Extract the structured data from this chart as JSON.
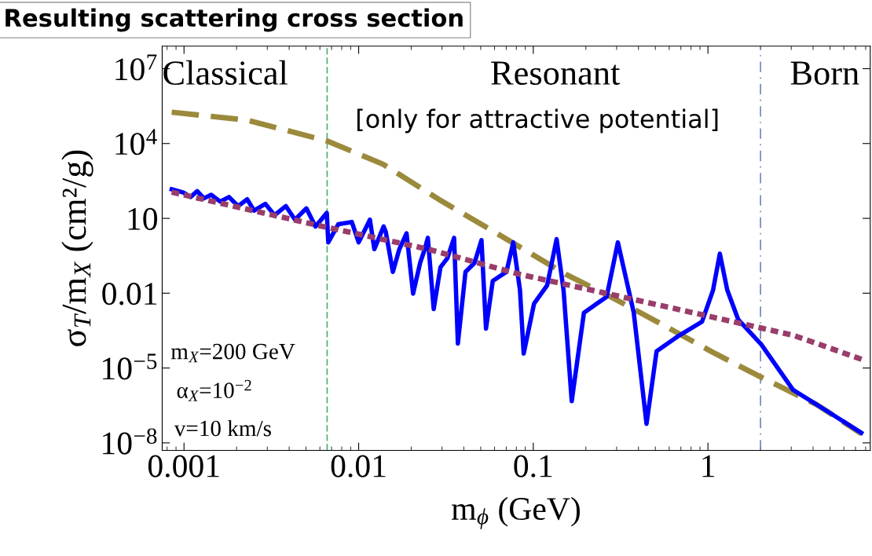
{
  "chart_data": {
    "type": "line",
    "title": "Resulting scattering cross section",
    "xlabel": "m$_{ϕ}$ (GeV)",
    "ylabel": "σ$_{T}$/m$_{X}$ (cm²/g)",
    "log": "xy",
    "grid": false,
    "legend": false,
    "marker": "none",
    "xlim": [
      0.00075,
      8.5
    ],
    "ylim": [
      5e-09,
      80000000.0
    ],
    "xticks": [
      0.001,
      0.01,
      0.1,
      1
    ],
    "yticks": [
      {
        "value": 1e-08,
        "label": "10$^{−8}$"
      },
      {
        "value": 1e-05,
        "label": "10$^{−5}$"
      },
      0.01,
      10,
      {
        "value": 10000,
        "label": "10$^{4}$"
      },
      {
        "value": 10000000,
        "label": "10$^{7}$"
      }
    ],
    "series": [
      {
        "color": "#9c8a3c",
        "line_style": "dashed",
        "x": [
          0.00085,
          0.00229,
          0.0066,
          0.0138,
          0.0288,
          0.0794,
          0.153,
          0.279,
          0.513,
          1.1,
          2.0,
          4.17,
          7.59
        ],
        "values": [
          180000,
          87000,
          12600,
          1480,
          57.5,
          0.89,
          0.0575,
          0.00708,
          0.00071,
          3.8e-05,
          4.4e-06,
          3.5e-07,
          2.3e-08
        ]
      },
      {
        "color": "#0000ff",
        "line_style": "solid",
        "x": [
          0.00085,
          0.00099,
          0.00109,
          0.00119,
          0.0013,
          0.00143,
          0.00161,
          0.00181,
          0.00204,
          0.0023,
          0.00252,
          0.00292,
          0.0033,
          0.00383,
          0.00432,
          0.00502,
          0.00566,
          0.00657,
          0.0067,
          0.00764,
          0.00914,
          0.01,
          0.0116,
          0.0123,
          0.0139,
          0.0143,
          0.0157,
          0.0171,
          0.0188,
          0.0205,
          0.0225,
          0.0239,
          0.0249,
          0.0269,
          0.0294,
          0.0322,
          0.0352,
          0.037,
          0.0409,
          0.0461,
          0.0505,
          0.0536,
          0.0586,
          0.0702,
          0.0768,
          0.0839,
          0.0881,
          0.101,
          0.12,
          0.136,
          0.149,
          0.166,
          0.195,
          0.263,
          0.305,
          0.376,
          0.445,
          0.508,
          0.686,
          0.925,
          1.07,
          1.17,
          1.29,
          1.49,
          2.02,
          3.07,
          4.95,
          7.55
        ],
        "values": [
          146,
          109,
          71.6,
          123,
          63.1,
          88.2,
          47.1,
          71.6,
          31,
          58,
          20.4,
          38.2,
          13.4,
          31,
          8.82,
          25.1,
          4.71,
          16.5,
          1.09,
          5.8,
          7.16,
          1.09,
          8.82,
          0.58,
          4.71,
          2.85,
          0.0716,
          0.58,
          2.51,
          0.0096,
          0.165,
          0.58,
          1.65,
          0.00231,
          0.109,
          0.251,
          1.65,
          9.6e-05,
          0.0716,
          0.165,
          1.34,
          0.000382,
          0.031,
          0.0716,
          1.09,
          0.0134,
          3.82e-05,
          0.00382,
          0.0204,
          1.46,
          0.0134,
          4.7e-07,
          0.00165,
          0.00716,
          1.09,
          0.00165,
          5.8e-08,
          4.7e-05,
          0.000204,
          0.000716,
          0.0134,
          0.382,
          0.0134,
          0.000882,
          8.82e-05,
          1.34e-06,
          1.65e-07,
          2.51e-08
        ]
      },
      {
        "color": "#993d6b",
        "line_style": "dotted",
        "x": [
          0.00085,
          0.0063,
          0.0251,
          0.0832,
          0.279,
          0.933,
          3.09,
          7.94
        ],
        "values": [
          112,
          4.68,
          0.575,
          0.0575,
          0.00891,
          0.00135,
          0.000204,
          2e-05
        ]
      }
    ],
    "ref_lines": [
      {
        "axis": "x",
        "value": 0.0066,
        "color": "#4caf6a",
        "line_style": "dashed"
      },
      {
        "axis": "x",
        "value": 2.0,
        "color": "#6f86b8",
        "line_style": "dashdot"
      }
    ],
    "annotations": [
      "Classical",
      "Resonant",
      "Born",
      "[only for attractive potential]",
      "m$_{X}$=200 GeV",
      "α$_{X}$=10$^{−2}$",
      "v=10 km/s"
    ]
  }
}
